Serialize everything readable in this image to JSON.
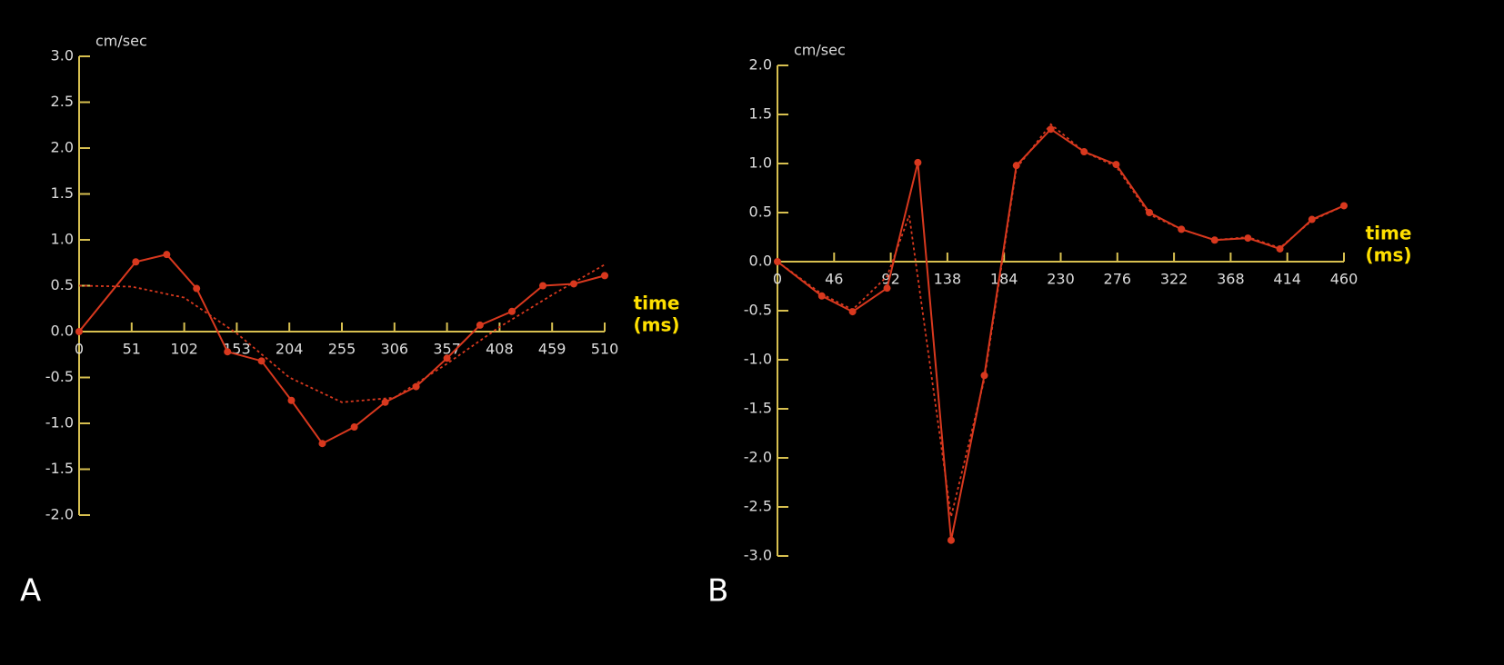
{
  "chart_data": [
    {
      "type": "line",
      "panel": "A",
      "ylabel": "cm/sec",
      "xlabel": [
        "time",
        "(ms)"
      ],
      "xlim": [
        0,
        510
      ],
      "xticks": [
        0,
        51,
        102,
        153,
        204,
        255,
        306,
        357,
        408,
        459,
        510
      ],
      "ylim": [
        -2,
        3
      ],
      "yticks": [
        {
          "value": -2,
          "label": "-2.0"
        },
        -1.5,
        {
          "value": -1,
          "label": "-1.0"
        },
        -0.5,
        {
          "value": 0,
          "label": "0.0"
        },
        0.5,
        {
          "value": 1,
          "label": "1.0"
        },
        1.5,
        {
          "value": 2,
          "label": "2.0"
        },
        2.5,
        {
          "value": 3,
          "label": "3.0"
        }
      ],
      "series": [
        {
          "color": "#d8381e",
          "markers": true,
          "dash": false,
          "x": [
            0,
            55,
            85,
            114,
            144,
            177,
            206,
            236,
            267,
            297,
            327,
            357,
            389,
            420,
            450,
            480,
            510
          ],
          "values": [
            0,
            0.76,
            0.84,
            0.47,
            -0.22,
            -0.32,
            -0.75,
            -1.22,
            -1.04,
            -0.77,
            -0.6,
            -0.29,
            0.07,
            0.22,
            0.5,
            0.52,
            0.61
          ]
        },
        {
          "color": "#d8381e",
          "markers": false,
          "dash": true,
          "x": [
            0,
            51,
            102,
            153,
            204,
            255,
            306,
            357,
            408,
            459,
            510
          ],
          "values": [
            0.5,
            0.49,
            0.37,
            -0.02,
            -0.5,
            -0.77,
            -0.72,
            -0.35,
            0.05,
            0.4,
            0.73
          ]
        }
      ]
    },
    {
      "type": "line",
      "panel": "B",
      "ylabel": "cm/sec",
      "xlabel": [
        "time",
        "(ms)"
      ],
      "xlim": [
        0,
        460
      ],
      "xticks": [
        0,
        46,
        92,
        138,
        184,
        230,
        276,
        322,
        368,
        414,
        460
      ],
      "ylim": [
        -3,
        2
      ],
      "yticks": [
        {
          "value": -3,
          "label": "-3.0"
        },
        -2.5,
        {
          "value": -2,
          "label": "-2.0"
        },
        -1.5,
        {
          "value": -1,
          "label": "-1.0"
        },
        -0.5,
        {
          "value": 0,
          "label": "0.0"
        },
        0.5,
        {
          "value": 1,
          "label": "1.0"
        },
        1.5,
        {
          "value": 2,
          "label": "2.0"
        }
      ],
      "series": [
        {
          "color": "#d8381e",
          "markers": true,
          "dash": false,
          "x": [
            0,
            36,
            61,
            89,
            114,
            141,
            168,
            194,
            222,
            249,
            275,
            302,
            328,
            355,
            382,
            408,
            434,
            460
          ],
          "values": [
            0,
            -0.35,
            -0.51,
            -0.27,
            1.01,
            -2.84,
            -1.16,
            0.98,
            1.35,
            1.12,
            0.99,
            0.5,
            0.33,
            0.22,
            0.24,
            0.13,
            0.43,
            0.57
          ]
        },
        {
          "color": "#d8381e",
          "markers": false,
          "dash": true,
          "x": [
            0,
            36,
            61,
            89,
            107,
            141,
            168,
            194,
            222,
            249,
            275,
            302,
            328,
            355,
            382,
            408,
            434,
            460
          ],
          "values": [
            0,
            -0.33,
            -0.49,
            -0.15,
            0.47,
            -2.6,
            -1.2,
            0.95,
            1.4,
            1.12,
            0.97,
            0.48,
            0.33,
            0.22,
            0.25,
            0.14,
            0.42,
            0.57
          ]
        }
      ]
    }
  ]
}
